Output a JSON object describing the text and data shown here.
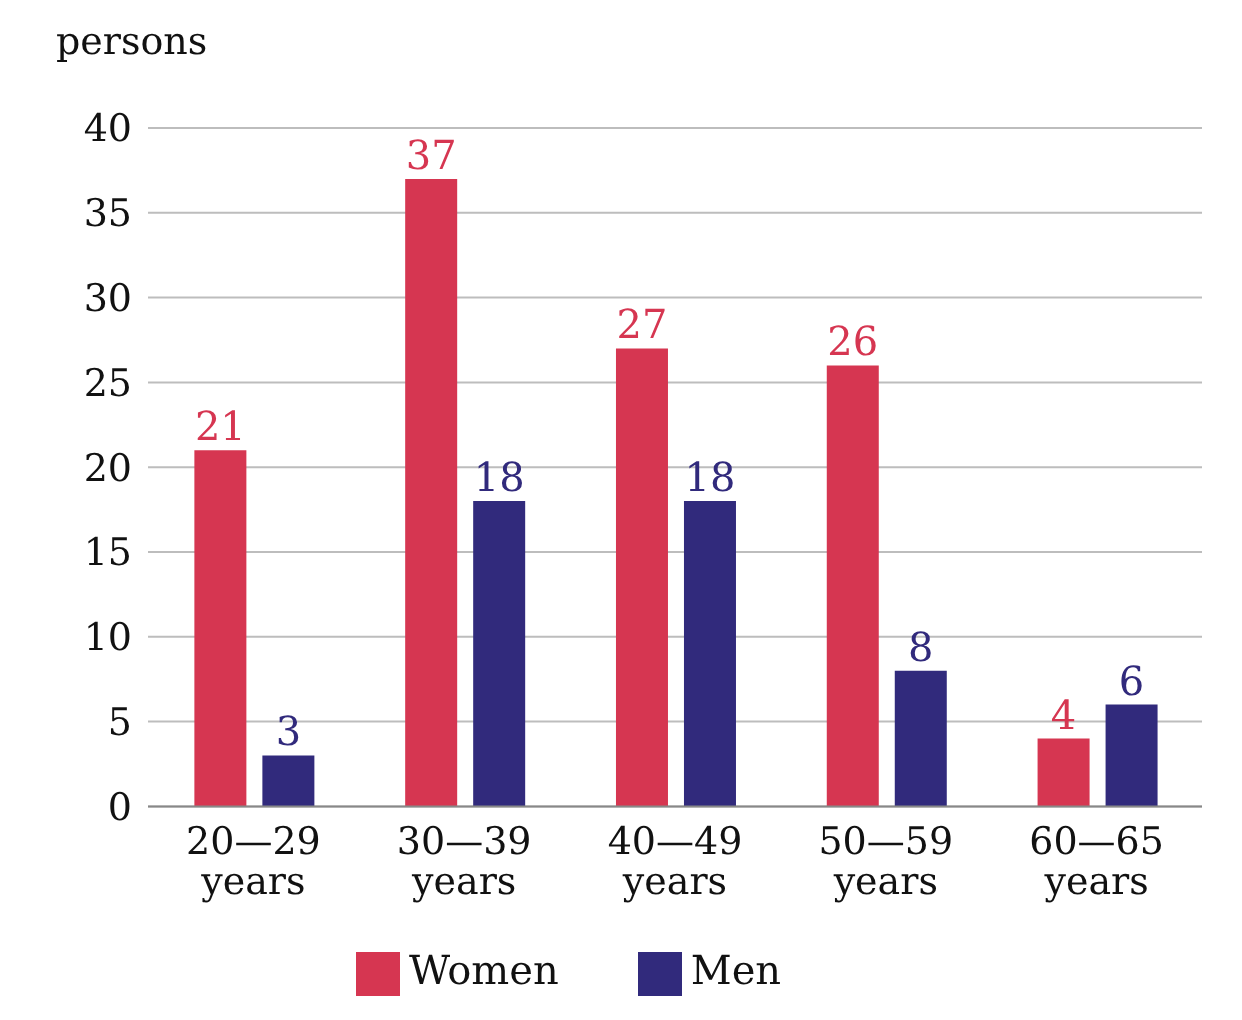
{
  "chart_data": {
    "type": "bar",
    "ylabel": "persons",
    "categories": [
      "20—29 years",
      "30—39 years",
      "40—49 years",
      "50—59 years",
      "60—65 years"
    ],
    "series": [
      {
        "name": "Women",
        "color": "#d63651",
        "values": [
          21,
          37,
          27,
          26,
          4
        ]
      },
      {
        "name": "Men",
        "color": "#312a7c",
        "values": [
          3,
          18,
          18,
          8,
          6
        ]
      }
    ],
    "ylim": [
      0,
      40
    ],
    "yticks": [
      0,
      5,
      10,
      15,
      20,
      25,
      30,
      35,
      40
    ],
    "grid": "y",
    "legend": "bottom",
    "data_labels": true
  }
}
